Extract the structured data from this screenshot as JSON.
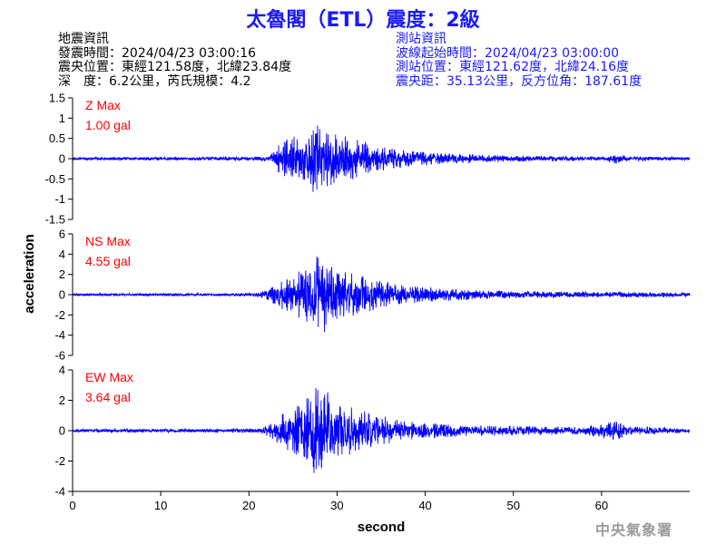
{
  "title": "太魯閣（ETL）震度：2級",
  "event_info": {
    "heading": "地震資訊",
    "origin_time": "發震時間：2024/04/23 03:00:16",
    "epicenter": "震央位置：東經121.58度，北緯23.84度",
    "depth_magnitude": "深　度：6.2公里，芮氏規模：4.2"
  },
  "station_info": {
    "heading": "測站資訊",
    "waveform_start": "波線起始時間：2024/04/23 03:00:00",
    "station_location": "測站位置：東經121.62度，北緯24.16度",
    "distance_azimuth": "震央距：35.13公里，反方位角：187.61度"
  },
  "credit": "中央氣象署",
  "colors": {
    "trace": "#0000ff",
    "title": "#1a1aff",
    "max_label": "#ff0000",
    "axis": "#000000",
    "credit": "#9a9a9a"
  },
  "chart_data": [
    {
      "type": "line",
      "component": "Z",
      "max_label": "Z Max",
      "max_value": "1.00 gal",
      "peak": 1.0,
      "ylim": [
        -1.5,
        1.5
      ],
      "yticks": [
        "1.5",
        "1",
        "0.5",
        "0",
        "-0.5",
        "-1",
        "-1.5"
      ],
      "envelope": [
        [
          0,
          0.03
        ],
        [
          21.3,
          0.05
        ],
        [
          21.6,
          0.09
        ],
        [
          22.2,
          0.04
        ],
        [
          23.5,
          0.4
        ],
        [
          25,
          0.55
        ],
        [
          27.5,
          0.85
        ],
        [
          28.5,
          0.75
        ],
        [
          30,
          0.6
        ],
        [
          33,
          0.45
        ],
        [
          36,
          0.25
        ],
        [
          42,
          0.13
        ],
        [
          50,
          0.08
        ],
        [
          60,
          0.05
        ],
        [
          61.5,
          0.12
        ],
        [
          63,
          0.06
        ],
        [
          70,
          0.04
        ]
      ]
    },
    {
      "type": "line",
      "component": "NS",
      "max_label": "NS Max",
      "max_value": "4.55 gal",
      "peak": 4.55,
      "ylim": [
        -6,
        6
      ],
      "yticks": [
        "6",
        "4",
        "2",
        "0",
        "-2",
        "-4",
        "-6"
      ],
      "envelope": [
        [
          0,
          0.12
        ],
        [
          20.5,
          0.15
        ],
        [
          22,
          0.5
        ],
        [
          23.5,
          1.3
        ],
        [
          25,
          2.0
        ],
        [
          27,
          3.2
        ],
        [
          28,
          4.3
        ],
        [
          29,
          3.3
        ],
        [
          31,
          2.3
        ],
        [
          34,
          1.6
        ],
        [
          37,
          1.0
        ],
        [
          40,
          0.7
        ],
        [
          50,
          0.35
        ],
        [
          60,
          0.25
        ],
        [
          62,
          0.3
        ],
        [
          70,
          0.2
        ]
      ]
    },
    {
      "type": "line",
      "component": "EW",
      "max_label": "EW Max",
      "max_value": "3.64 gal",
      "peak": 3.64,
      "ylim": [
        -4,
        4
      ],
      "yticks": [
        "4",
        "2",
        "0",
        "-2",
        "-4"
      ],
      "envelope": [
        [
          0,
          0.1
        ],
        [
          21.3,
          0.15
        ],
        [
          21.7,
          0.3
        ],
        [
          22.5,
          0.5
        ],
        [
          24,
          1.2
        ],
        [
          26,
          1.8
        ],
        [
          28,
          3.3
        ],
        [
          29,
          2.6
        ],
        [
          31,
          1.7
        ],
        [
          34,
          1.1
        ],
        [
          38,
          0.6
        ],
        [
          45,
          0.35
        ],
        [
          58,
          0.25
        ],
        [
          61.5,
          0.65
        ],
        [
          63,
          0.3
        ],
        [
          70,
          0.15
        ]
      ]
    }
  ],
  "axes": {
    "xlabel": "second",
    "ylabel": "acceleration",
    "xlim": [
      0,
      70
    ],
    "xticks": [
      "0",
      "10",
      "20",
      "30",
      "40",
      "50",
      "60"
    ]
  }
}
